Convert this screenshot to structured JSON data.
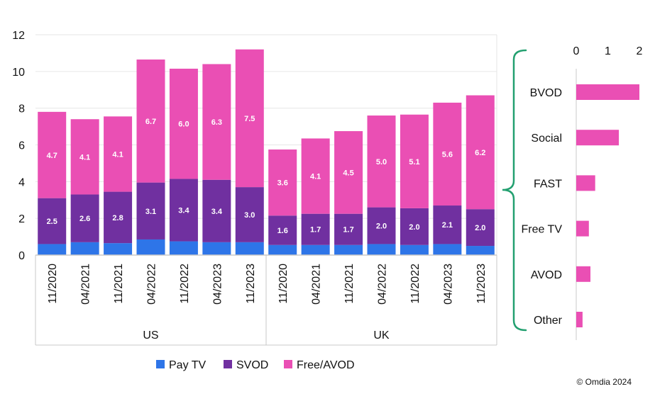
{
  "colors": {
    "pay_tv": "#2E75E8",
    "svod": "#7030A0",
    "free_avod": "#EA4FB4",
    "brace": "#23A070",
    "grid": "#E6E6E6",
    "axis": "#C8C8C8",
    "text": "#111111"
  },
  "chart_data": [
    {
      "type": "bar",
      "stacked": true,
      "title": "",
      "ylim": [
        0,
        12
      ],
      "yticks": [
        "0",
        "2",
        "4",
        "6",
        "8",
        "10",
        "12"
      ],
      "grid": true,
      "legend_position": "bottom",
      "groups": [
        {
          "label": "US",
          "categories": [
            "11/2020",
            "04/2021",
            "11/2021",
            "04/2022",
            "11/2022",
            "04/2023",
            "11/2023"
          ]
        },
        {
          "label": "UK",
          "categories": [
            "11/2020",
            "04/2021",
            "11/2021",
            "04/2022",
            "11/2022",
            "04/2023",
            "11/2023"
          ]
        }
      ],
      "series": [
        {
          "name": "Pay TV",
          "values": [
            0.6,
            0.7,
            0.65,
            0.85,
            0.75,
            0.7,
            0.7,
            0.55,
            0.55,
            0.55,
            0.6,
            0.55,
            0.6,
            0.5
          ],
          "labels": [
            "",
            "",
            "",
            "",
            "",
            "",
            "",
            "",
            "",
            "",
            "",
            "",
            "",
            ""
          ]
        },
        {
          "name": "SVOD",
          "values": [
            2.5,
            2.6,
            2.8,
            3.1,
            3.4,
            3.4,
            3.0,
            1.6,
            1.7,
            1.7,
            2.0,
            2.0,
            2.1,
            2.0
          ],
          "labels": [
            "2.5",
            "2.6",
            "2.8",
            "3.1",
            "3.4",
            "3.4",
            "3.0",
            "1.6",
            "1.7",
            "1.7",
            "2.0",
            "2.0",
            "2.1",
            "2.0"
          ]
        },
        {
          "name": "Free/AVOD",
          "values": [
            4.7,
            4.1,
            4.1,
            6.7,
            6.0,
            6.3,
            7.5,
            3.6,
            4.1,
            4.5,
            5.0,
            5.1,
            5.6,
            6.2
          ],
          "labels": [
            "4.7",
            "4.1",
            "4.1",
            "6.7",
            "6.0",
            "6.3",
            "7.5",
            "3.6",
            "4.1",
            "4.5",
            "5.0",
            "5.1",
            "5.6",
            "6.2"
          ]
        }
      ]
    },
    {
      "type": "bar",
      "orientation": "horizontal",
      "categories": [
        "BVOD",
        "Social",
        "FAST",
        "Free TV",
        "AVOD",
        "Other"
      ],
      "values": [
        2.0,
        1.35,
        0.6,
        0.4,
        0.45,
        0.2
      ],
      "xlim": [
        0,
        2
      ],
      "xticks": [
        "0",
        "1",
        "2"
      ],
      "xaxis_position": "top"
    }
  ],
  "footer": {
    "copyright": "© Omdia 2024"
  }
}
